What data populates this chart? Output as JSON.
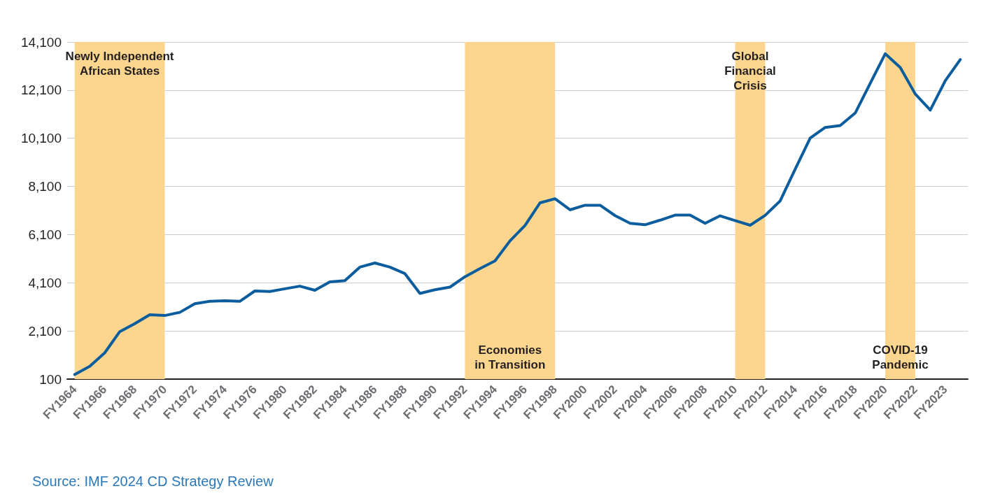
{
  "chart_data": {
    "type": "line",
    "categories": [
      "FY1964",
      null,
      "FY1966",
      null,
      "FY1968",
      null,
      "FY1970",
      null,
      "FY1972",
      null,
      "FY1974",
      null,
      "FY1976",
      null,
      "FY1980",
      null,
      "FY1982",
      null,
      "FY1984",
      null,
      "FY1986",
      null,
      "FY1988",
      null,
      "FY1990",
      null,
      "FY1992",
      null,
      "FY1994",
      null,
      "FY1996",
      null,
      "FY1998",
      null,
      "FY2000",
      null,
      "FY2002",
      null,
      "FY2004",
      null,
      "FY2006",
      null,
      "FY2008",
      null,
      "FY2010",
      null,
      "FY2012",
      null,
      "FY2014",
      null,
      "FY2016",
      null,
      "FY2018",
      null,
      "FY2020",
      null,
      "FY2022",
      null,
      "FY2023",
      null
    ],
    "series": [
      {
        "color": "#0b5d9e",
        "values": [
          290,
          630,
          1190,
          2070,
          2400,
          2770,
          2740,
          2870,
          3230,
          3330,
          3350,
          3330,
          3760,
          3740,
          3850,
          3960,
          3790,
          4140,
          4190,
          4750,
          4920,
          4750,
          4480,
          3660,
          3810,
          3920,
          4350,
          4690,
          5010,
          5840,
          6480,
          7420,
          7590,
          7130,
          7320,
          7320,
          6890,
          6570,
          6510,
          6700,
          6910,
          6910,
          6570,
          6880,
          6680,
          6490,
          6900,
          7500,
          8820,
          10110,
          10550,
          10630,
          11150,
          12380,
          13610,
          13040,
          11940,
          11270,
          12490,
          13370
        ]
      }
    ],
    "ylim": [
      100,
      14100
    ],
    "yticks": [
      {
        "value": 100,
        "label": "100"
      },
      {
        "value": 2100,
        "label": "2,100"
      },
      {
        "value": 4100,
        "label": "4,100"
      },
      {
        "value": 6100,
        "label": "6,100"
      },
      {
        "value": 8100,
        "label": "8,100"
      },
      {
        "value": 10100,
        "label": "10,100"
      },
      {
        "value": 12100,
        "label": "12,100"
      },
      {
        "value": 14100,
        "label": "14,100"
      }
    ],
    "bands": [
      {
        "axis": "x",
        "from": "FY1964",
        "to": "FY1970",
        "color": "#fcd68e",
        "label": "Newly Independent\nAfrican States"
      },
      {
        "axis": "x",
        "from": "FY1992",
        "to": "FY1998",
        "color": "#fcd68e",
        "label": "Economies\nin Transition"
      },
      {
        "axis": "x",
        "from": "FY2010",
        "to": "FY2012",
        "color": "#fcd68e",
        "label": "Global\nFinancial\nCrisis"
      },
      {
        "axis": "x",
        "from": "FY2020",
        "to": "FY2022",
        "color": "#fcd68e",
        "label": "COVID-19\nPandemic"
      }
    ],
    "annotations": [
      "Source: IMF 2024 CD Strategy Review"
    ],
    "grid": "y",
    "marker": "none",
    "line_style": "solid"
  }
}
